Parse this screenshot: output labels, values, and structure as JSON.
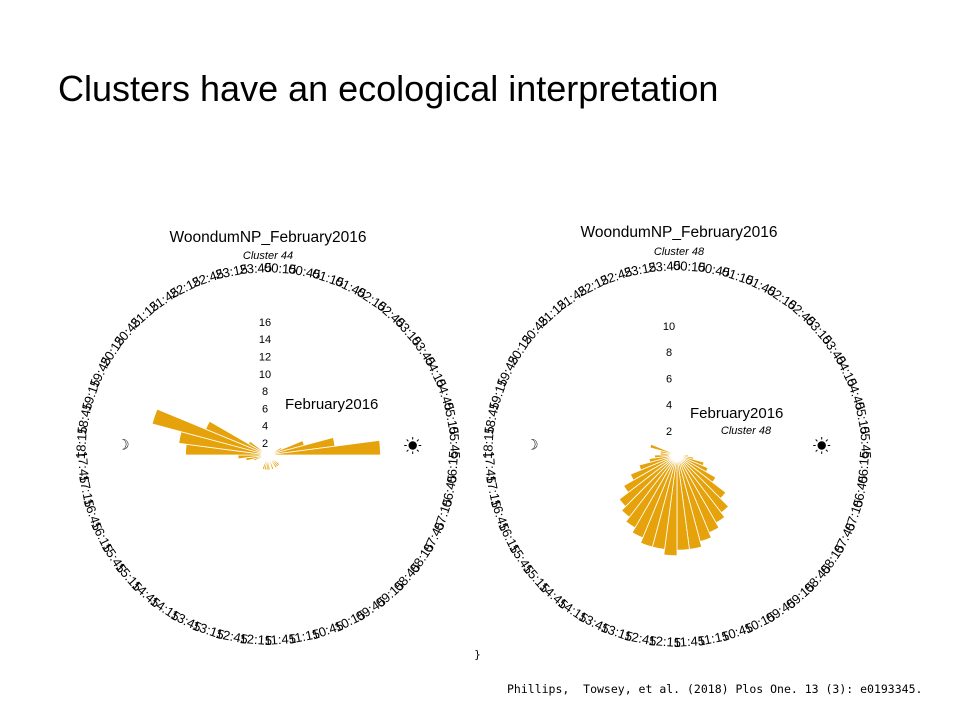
{
  "slide": {
    "title": "Clusters have an ecological interpretation",
    "citation": "Phillips,  Towsey, et al. (2018) Plos One. 13 (3): e0193345.",
    "stray_glyph": "}"
  },
  "colors": {
    "bar": "#E5A20A",
    "bar_edge": "#ffffff",
    "text": "#000000"
  },
  "icons": {
    "sunrise": "sun-icon",
    "sunset": "moon-icon"
  },
  "chart_data": [
    {
      "type": "bar",
      "coordinate_system": "polar (24-hour clock, midnight at top, clockwise)",
      "title": "WoondumNP_February2016",
      "subtitle": "Cluster 44",
      "inner_title": "February2016",
      "radial_ticks": [
        2,
        4,
        6,
        8,
        10,
        12,
        14,
        16
      ],
      "rlim": [
        0,
        16
      ],
      "categories": [
        "00:15",
        "00:45",
        "01:15",
        "01:45",
        "02:15",
        "02:45",
        "03:15",
        "03:45",
        "04:15",
        "04:45",
        "05:15",
        "05:45",
        "06:15",
        "06:45",
        "07:15",
        "07:45",
        "08:15",
        "08:45",
        "09:15",
        "09:45",
        "10:15",
        "10:45",
        "11:15",
        "11:45",
        "12:15",
        "12:45",
        "13:15",
        "13:45",
        "14:15",
        "14:45",
        "15:15",
        "15:45",
        "16:15",
        "16:45",
        "17:15",
        "17:45",
        "18:15",
        "18:45",
        "19:15",
        "19:45",
        "20:15",
        "20:45",
        "21:15",
        "21:45",
        "22:15",
        "22:45",
        "23:15",
        "23:45"
      ],
      "series": [
        {
          "values": [
            0,
            0,
            0,
            0,
            0,
            0,
            0,
            0,
            2,
            5,
            9,
            15,
            1,
            1,
            1,
            1,
            1,
            2,
            2,
            2,
            1,
            2,
            1,
            2,
            2,
            2,
            2,
            1,
            1,
            1,
            1,
            1,
            1,
            2,
            3,
            4,
            11,
            12,
            16,
            9,
            3,
            0,
            0,
            0,
            0,
            0,
            0,
            0
          ]
        }
      ],
      "sunrise": "05:45",
      "sunset": "18:15"
    },
    {
      "type": "bar",
      "coordinate_system": "polar (24-hour clock, midnight at top, clockwise)",
      "title": "WoondumNP_February2016",
      "subtitle": "Cluster 48",
      "inner_title": "February2016",
      "inner_subtitle": "Cluster 48",
      "radial_ticks": [
        2,
        4,
        6,
        8,
        10
      ],
      "rlim": [
        0,
        10
      ],
      "categories": [
        "00:15",
        "00:45",
        "01:15",
        "01:45",
        "02:15",
        "02:45",
        "03:15",
        "03:45",
        "04:15",
        "04:45",
        "05:15",
        "05:45",
        "06:15",
        "06:45",
        "07:15",
        "07:45",
        "08:15",
        "08:45",
        "09:15",
        "09:45",
        "10:15",
        "10:45",
        "11:15",
        "11:45",
        "12:15",
        "12:45",
        "13:15",
        "13:45",
        "14:15",
        "14:45",
        "15:15",
        "15:45",
        "16:15",
        "16:45",
        "17:15",
        "17:45",
        "18:15",
        "18:45",
        "19:15",
        "19:45",
        "20:15",
        "20:45",
        "21:15",
        "21:45",
        "22:15",
        "22:45",
        "23:15",
        "23:45"
      ],
      "series": [
        {
          "values": [
            0,
            0,
            0,
            0,
            0,
            0,
            0,
            0,
            0,
            0,
            0,
            0.5,
            1,
            1.5,
            2.5,
            3,
            4,
            5.5,
            6.5,
            7,
            7.5,
            8,
            8.5,
            8.5,
            9,
            8.5,
            8.5,
            8,
            7.5,
            7,
            6.5,
            5.5,
            4.5,
            3.5,
            2.5,
            2,
            1.5,
            1.5,
            2.5,
            0.5,
            0,
            0,
            0,
            0,
            0,
            0,
            0,
            0
          ]
        }
      ],
      "sunrise": "05:45",
      "sunset": "18:15"
    }
  ]
}
